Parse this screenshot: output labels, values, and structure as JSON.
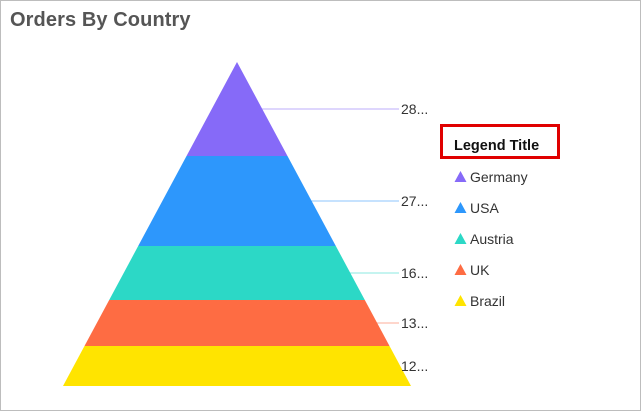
{
  "chart_data": {
    "type": "pyramid",
    "title": "Orders By Country",
    "legend_title": "Legend Title",
    "legend_position": "right",
    "series": [
      {
        "name": "Germany",
        "value": 28,
        "label": "28...",
        "color": "#866af8"
      },
      {
        "name": "USA",
        "value": 27,
        "label": "27...",
        "color": "#2d97fc"
      },
      {
        "name": "Austria",
        "value": 16,
        "label": "16...",
        "color": "#2cd8c6"
      },
      {
        "name": "UK",
        "value": 13,
        "label": "13...",
        "color": "#fe6c43"
      },
      {
        "name": "Brazil",
        "value": 12,
        "label": "12...",
        "color": "#ffe400"
      }
    ]
  }
}
